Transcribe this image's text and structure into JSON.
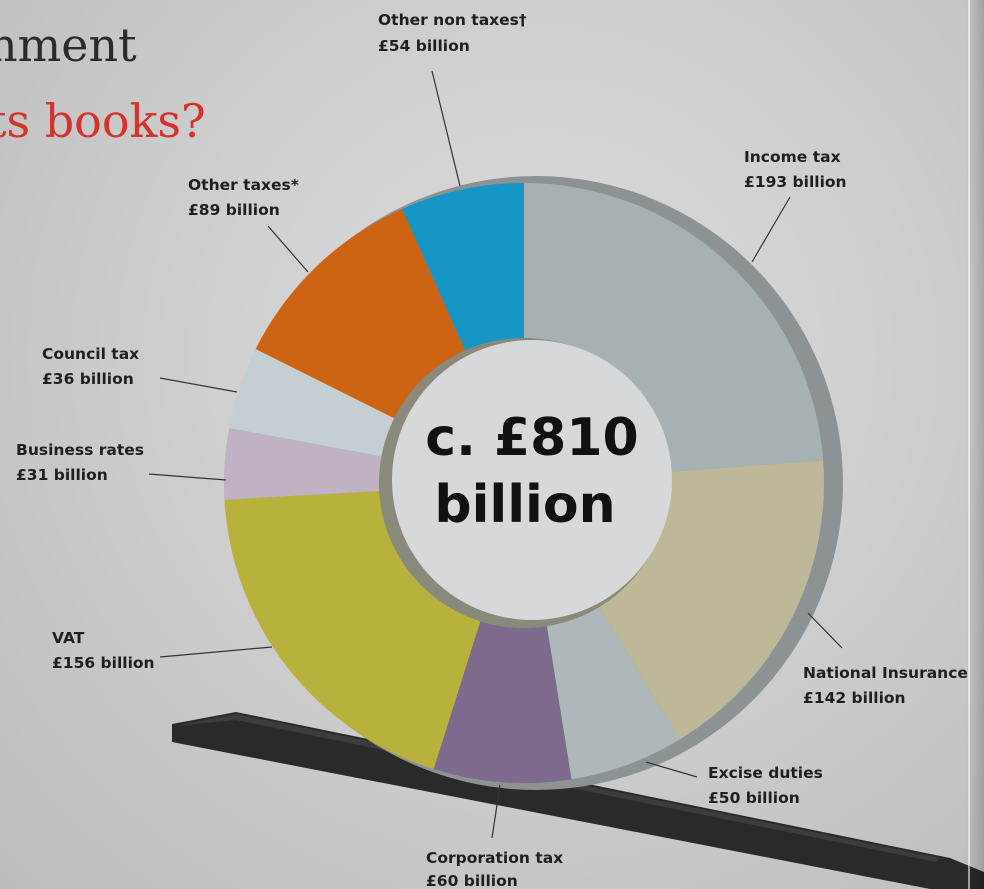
{
  "headline": {
    "line1": "nment",
    "line2": "ts books?"
  },
  "chart_data": {
    "type": "pie",
    "total_label_line1": "c. £810",
    "total_label_line2": "billion",
    "slices": [
      {
        "name": "Income tax",
        "value": 193,
        "value_label": "£193 billion",
        "color": "#a6b1b4"
      },
      {
        "name": "National Insurance",
        "value": 142,
        "value_label": "£142 billion",
        "color": "#bdb897"
      },
      {
        "name": "Excise duties",
        "value": 50,
        "value_label": "£50 billion",
        "color": "#aeb8ba"
      },
      {
        "name": "Corporation tax",
        "value": 60,
        "value_label": "£60 billion",
        "color": "#7e6a8c"
      },
      {
        "name": "VAT",
        "value": 156,
        "value_label": "£156 billion",
        "color": "#b8b13c"
      },
      {
        "name": "Business rates",
        "value": 31,
        "value_label": "£31 billion",
        "color": "#bfb2c2"
      },
      {
        "name": "Council tax",
        "value": 36,
        "value_label": "£36 billion",
        "color": "#c5cfd3"
      },
      {
        "name": "Other taxes*",
        "value": 89,
        "value_label": "£89 billion",
        "color": "#cc6414"
      },
      {
        "name": "Other non taxes†",
        "value": 54,
        "value_label": "£54 billion",
        "color": "#1596c4"
      }
    ]
  }
}
